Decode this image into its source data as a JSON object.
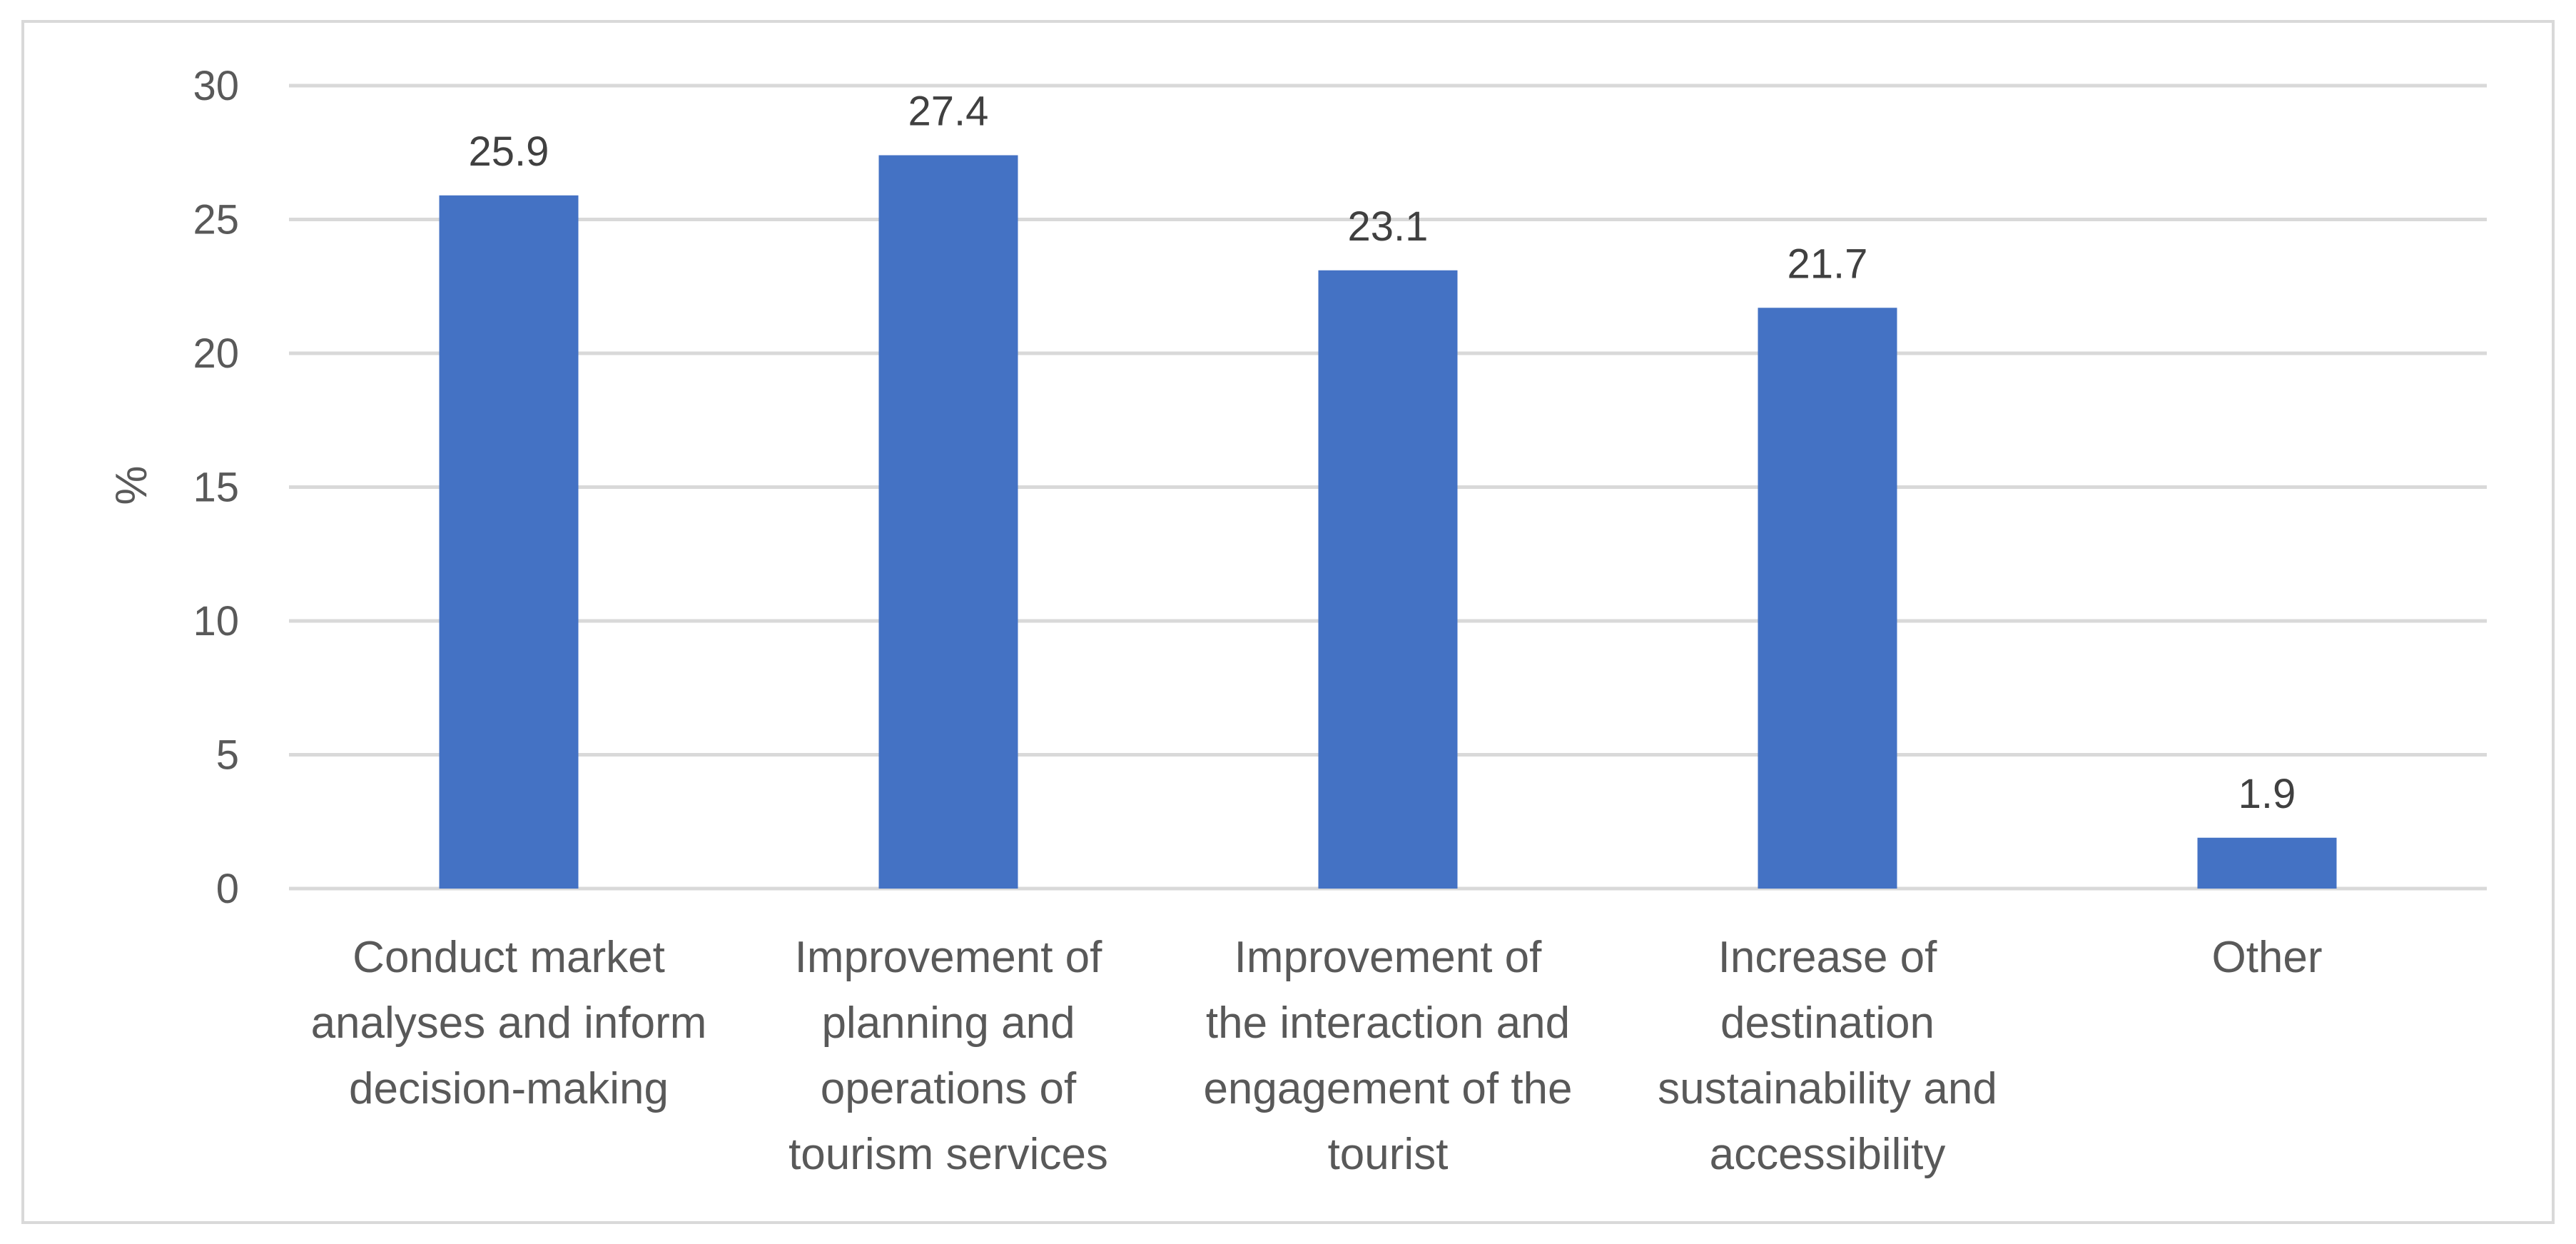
{
  "chart_data": {
    "type": "bar",
    "title": "",
    "xlabel": "",
    "ylabel": "%",
    "ylim": [
      0,
      30
    ],
    "yticks": [
      0,
      5,
      10,
      15,
      20,
      25,
      30
    ],
    "grid": true,
    "categories": [
      [
        "Conduct market",
        "analyses and inform",
        "decision-making"
      ],
      [
        "Improvement of",
        "planning and",
        "operations of",
        "tourism services"
      ],
      [
        "Improvement of",
        "the interaction and",
        "engagement of the",
        "tourist"
      ],
      [
        "Increase of",
        "destination",
        "sustainability and",
        "accessibility"
      ],
      [
        "Other"
      ]
    ],
    "values": [
      25.9,
      27.4,
      23.1,
      21.7,
      1.9
    ],
    "data_labels": [
      "25.9",
      "27.4",
      "23.1",
      "21.7",
      "1.9"
    ],
    "bar_color": "#4472c4"
  }
}
